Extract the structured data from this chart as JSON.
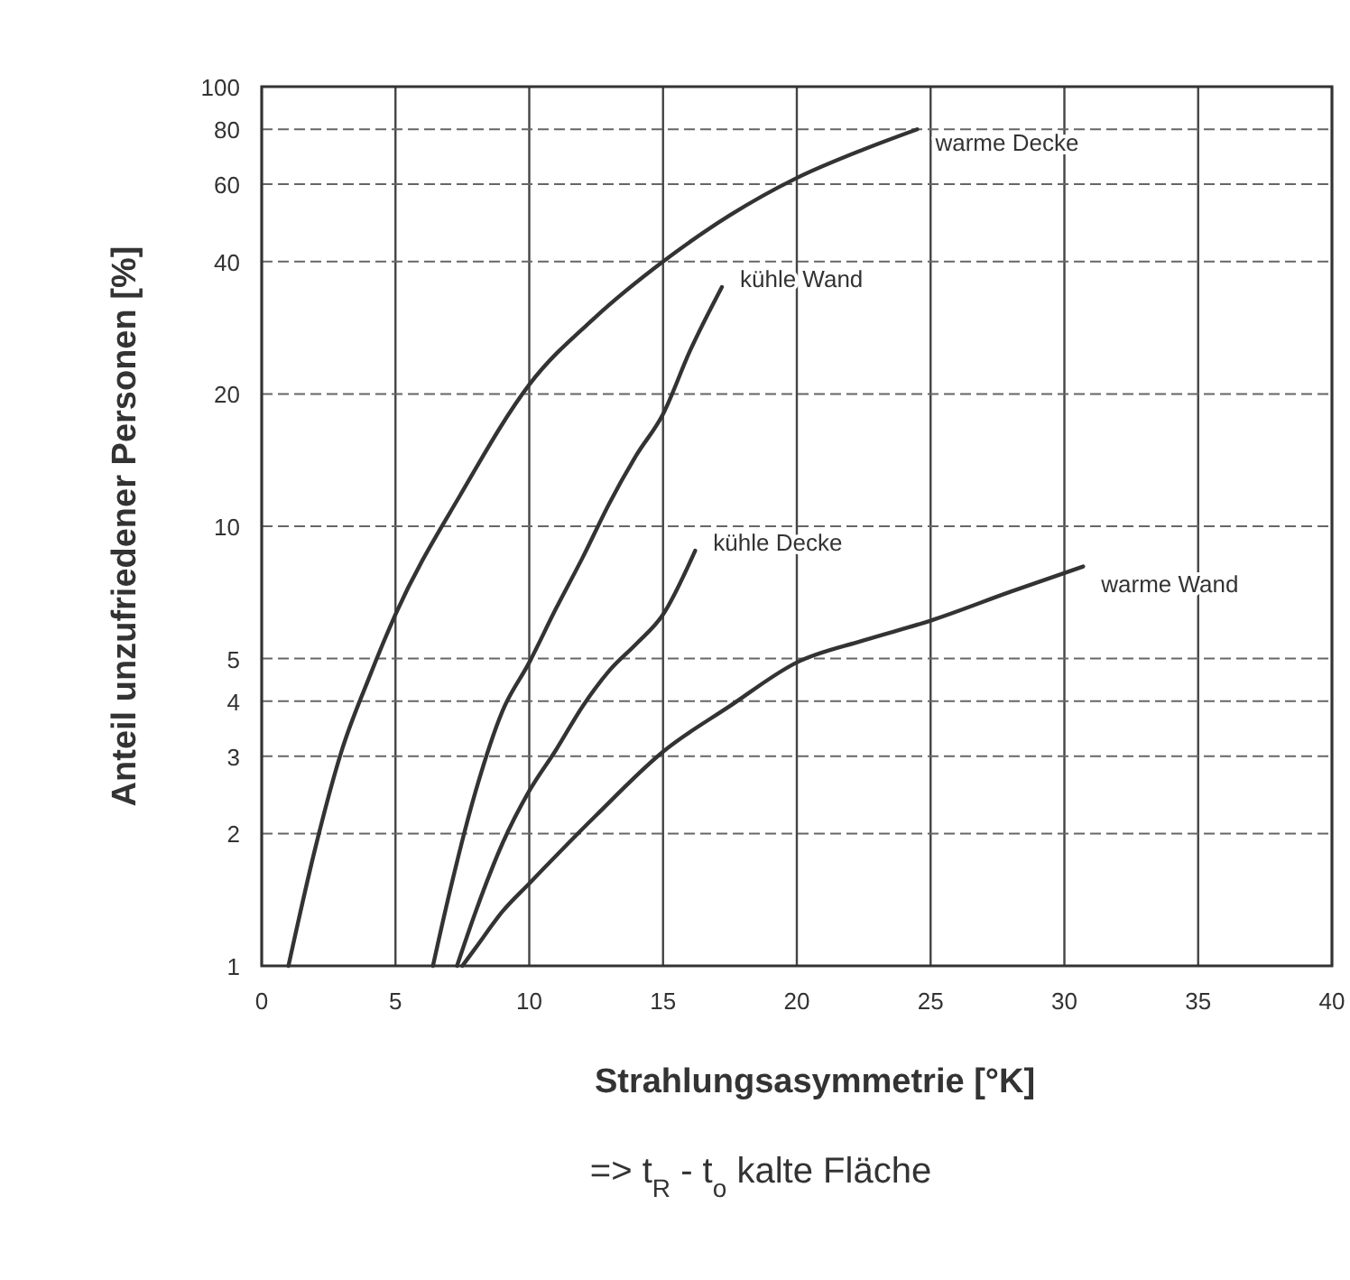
{
  "chart_data": {
    "type": "line",
    "xlabel": "Strahlungsasymmetrie [°K]",
    "ylabel": "Anteil unzufriedener Personen [%]",
    "annotations": [
      "=> t$_{R}$ - t$_{o}$ kalte Fläche"
    ],
    "log": true,
    "grid": true,
    "marker": "none",
    "line_style": "solid",
    "xlim": [
      0,
      40
    ],
    "xticks": [
      0,
      5,
      10,
      15,
      20,
      25,
      30,
      35,
      40
    ],
    "ylim": [
      1,
      100
    ],
    "yticks": [
      1,
      2,
      3,
      4,
      5,
      10,
      20,
      40,
      60,
      80,
      100
    ],
    "series": [
      {
        "name": "warme Decke",
        "color": "#333333",
        "x": [
          1,
          2,
          3,
          4,
          5,
          7.5,
          10,
          12.5,
          15,
          17.5,
          20,
          22.5,
          24.5
        ],
        "values": [
          1,
          1.85,
          3.1,
          4.5,
          6.3,
          12,
          21,
          30,
          40,
          51,
          62,
          72,
          80
        ]
      },
      {
        "name": "kühle Wand",
        "color": "#333333",
        "x": [
          6.4,
          7,
          8,
          9,
          10,
          11,
          12,
          13,
          14,
          15,
          16,
          17.2
        ],
        "values": [
          1,
          1.45,
          2.5,
          3.8,
          4.9,
          6.5,
          8.5,
          11.3,
          14.5,
          18,
          25,
          35
        ]
      },
      {
        "name": "kühle Decke",
        "color": "#333333",
        "x": [
          7.3,
          8,
          9,
          10,
          11,
          12,
          13,
          14,
          15,
          16.2
        ],
        "values": [
          1,
          1.33,
          1.9,
          2.5,
          3.1,
          3.9,
          4.7,
          5.4,
          6.3,
          8.8
        ]
      },
      {
        "name": "warme Wand",
        "color": "#333333",
        "x": [
          7.5,
          8,
          9,
          10,
          12.5,
          15,
          17.5,
          20,
          22.5,
          25,
          28,
          30.7
        ],
        "values": [
          1,
          1.1,
          1.33,
          1.54,
          2.2,
          3.07,
          3.9,
          4.9,
          5.5,
          6.1,
          7.1,
          8.1
        ]
      }
    ]
  }
}
